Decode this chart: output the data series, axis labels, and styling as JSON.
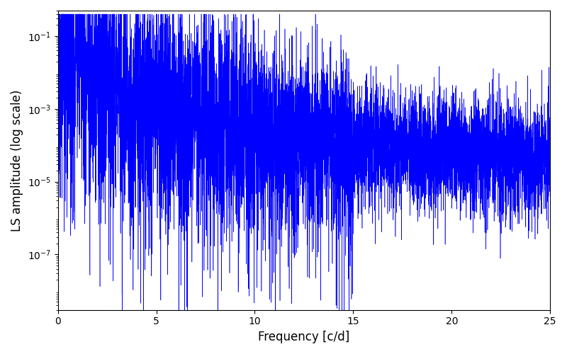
{
  "xlabel": "Frequency [c/d]",
  "ylabel": "LS amplitude (log scale)",
  "xlim": [
    0,
    25
  ],
  "ylim": [
    3e-09,
    0.5
  ],
  "yticks": [
    1e-07,
    1e-05,
    0.001,
    0.1
  ],
  "line_color": "#0000ff",
  "line_width": 0.4,
  "freq_min": 0.0,
  "freq_max": 25.0,
  "n_points": 8000,
  "seed": 12345,
  "figsize": [
    8.0,
    5.0
  ],
  "dpi": 100,
  "background_color": "#ffffff"
}
